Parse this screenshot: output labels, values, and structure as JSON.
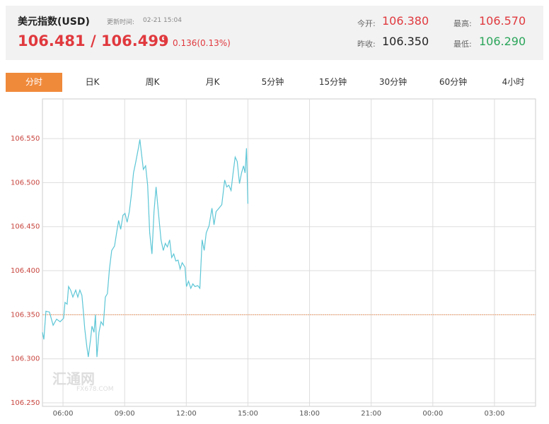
{
  "header": {
    "title": "美元指数(USD)",
    "update_label": "更新时间:",
    "update_time": "02-21 15:04",
    "price": "106.481 / 106.499",
    "change": "0.136(0.13%)",
    "open_label": "今开:",
    "open": "106.380",
    "high_label": "最高:",
    "high": "106.570",
    "prev_close_label": "昨收:",
    "prev_close": "106.350",
    "low_label": "最低:",
    "low": "106.290"
  },
  "tabs": {
    "items": [
      "分时",
      "日K",
      "周K",
      "月K",
      "5分钟",
      "15分钟",
      "30分钟",
      "60分钟",
      "4小时"
    ],
    "active": 0
  },
  "watermark": {
    "name": "汇通网",
    "site": "FX678.COM"
  },
  "chart_data": {
    "type": "line",
    "color": "#5cc6d6",
    "grid": true,
    "reference_line": 106.35,
    "reference_color": "#f0a070",
    "xlim": [
      5,
      29
    ],
    "xticks": [
      {
        "value": 6,
        "label": "06:00"
      },
      {
        "value": 9,
        "label": "09:00"
      },
      {
        "value": 12,
        "label": "12:00"
      },
      {
        "value": 15,
        "label": "15:00"
      },
      {
        "value": 18,
        "label": "18:00"
      },
      {
        "value": 21,
        "label": "21:00"
      },
      {
        "value": 24,
        "label": "00:00"
      },
      {
        "value": 27,
        "label": "03:00"
      }
    ],
    "ylim": [
      106.246,
      106.595
    ],
    "yticks": [
      {
        "value": 106.25,
        "label": "106.250"
      },
      {
        "value": 106.3,
        "label": "106.300"
      },
      {
        "value": 106.35,
        "label": "106.350"
      },
      {
        "value": 106.4,
        "label": "106.400"
      },
      {
        "value": 106.45,
        "label": "106.450"
      },
      {
        "value": 106.5,
        "label": "106.500"
      },
      {
        "value": 106.55,
        "label": "106.550"
      }
    ],
    "x": [
      5.0,
      5.07,
      5.17,
      5.34,
      5.52,
      5.69,
      5.86,
      6.03,
      6.1,
      6.2,
      6.27,
      6.37,
      6.48,
      6.62,
      6.72,
      6.82,
      6.92,
      6.99,
      7.06,
      7.16,
      7.23,
      7.34,
      7.41,
      7.51,
      7.58,
      7.65,
      7.75,
      7.85,
      7.96,
      8.06,
      8.16,
      8.26,
      8.37,
      8.51,
      8.61,
      8.71,
      8.81,
      8.92,
      9.02,
      9.12,
      9.23,
      9.33,
      9.43,
      9.54,
      9.67,
      9.74,
      9.81,
      9.91,
      10.02,
      10.12,
      10.22,
      10.33,
      10.43,
      10.53,
      10.64,
      10.77,
      10.88,
      10.98,
      11.08,
      11.19,
      11.29,
      11.39,
      11.49,
      11.6,
      11.7,
      11.8,
      11.94,
      12.01,
      12.11,
      12.22,
      12.32,
      12.42,
      12.56,
      12.66,
      12.77,
      12.87,
      12.97,
      13.11,
      13.25,
      13.35,
      13.45,
      13.59,
      13.73,
      13.87,
      13.97,
      14.07,
      14.18,
      14.28,
      14.38,
      14.48,
      14.59,
      14.69,
      14.79,
      14.86,
      14.93,
      15.0
    ],
    "values": [
      106.33,
      106.322,
      106.354,
      106.353,
      106.338,
      106.345,
      106.342,
      106.346,
      106.364,
      106.362,
      106.382,
      106.378,
      106.37,
      106.378,
      106.37,
      106.378,
      106.372,
      106.354,
      106.334,
      106.314,
      106.302,
      106.322,
      106.337,
      106.33,
      106.35,
      106.302,
      106.33,
      106.342,
      106.338,
      106.37,
      106.374,
      106.402,
      106.423,
      106.428,
      106.443,
      106.457,
      106.447,
      106.463,
      106.465,
      106.455,
      106.467,
      106.487,
      106.511,
      106.523,
      106.539,
      106.549,
      106.535,
      106.515,
      106.519,
      106.497,
      106.443,
      106.419,
      106.467,
      106.495,
      106.467,
      106.435,
      106.423,
      106.431,
      106.427,
      106.435,
      106.415,
      106.419,
      106.411,
      106.412,
      106.402,
      106.409,
      106.404,
      106.382,
      106.388,
      106.38,
      106.385,
      106.382,
      106.383,
      106.38,
      106.435,
      106.423,
      106.443,
      106.451,
      106.471,
      106.452,
      106.467,
      106.471,
      106.475,
      106.503,
      106.495,
      106.497,
      106.491,
      106.511,
      106.529,
      106.524,
      106.499,
      106.511,
      106.519,
      106.511,
      106.539,
      106.476
    ]
  }
}
